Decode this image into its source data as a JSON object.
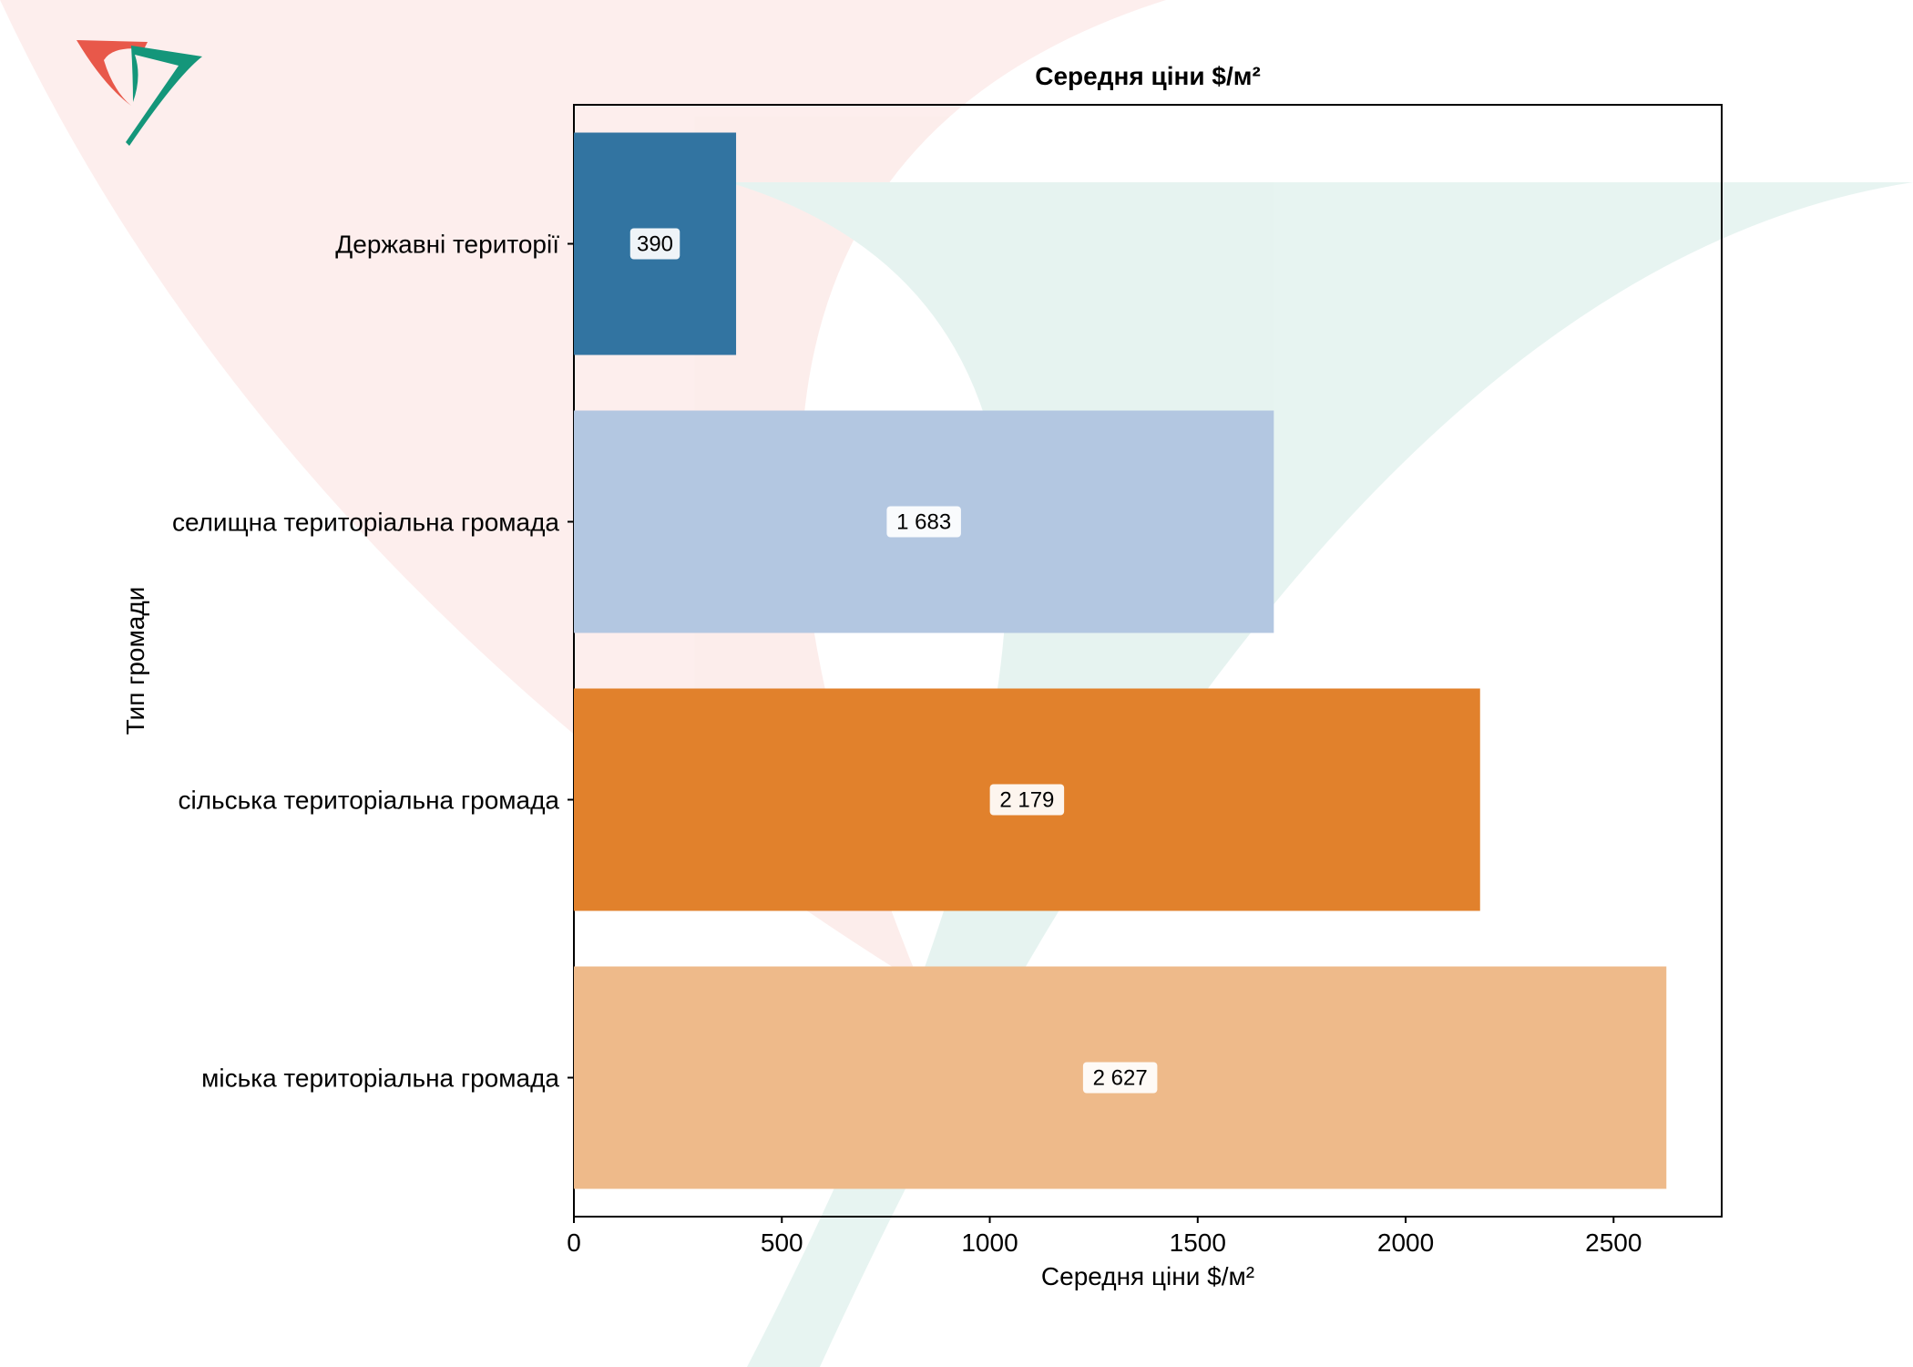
{
  "chart_data": {
    "type": "bar",
    "orientation": "horizontal",
    "title": "Середня ціни $/м²",
    "xlabel": "Середня ціни $/м²",
    "ylabel": "Тип громади",
    "categories": [
      "Державні території",
      "селищна територіальна громада",
      "сільська територіальна громада",
      "міська територіальна громада"
    ],
    "values": [
      390,
      1683,
      2179,
      2627
    ],
    "value_labels": [
      "390",
      "1 683",
      "2 179",
      "2 627"
    ],
    "bar_colors": [
      "#3274a1",
      "#b3c7e1",
      "#e1812c",
      "#eeba8a"
    ],
    "xlim": [
      0,
      2760
    ],
    "xticks": [
      0,
      500,
      1000,
      1500,
      2000,
      2500
    ],
    "xtick_labels": [
      "0",
      "500",
      "1000",
      "1500",
      "2000",
      "2500"
    ],
    "grid": false,
    "legend": "none"
  },
  "watermark": {
    "colors": {
      "red": "#e8584a",
      "green": "#14967a"
    },
    "icon": "logo-icon"
  }
}
